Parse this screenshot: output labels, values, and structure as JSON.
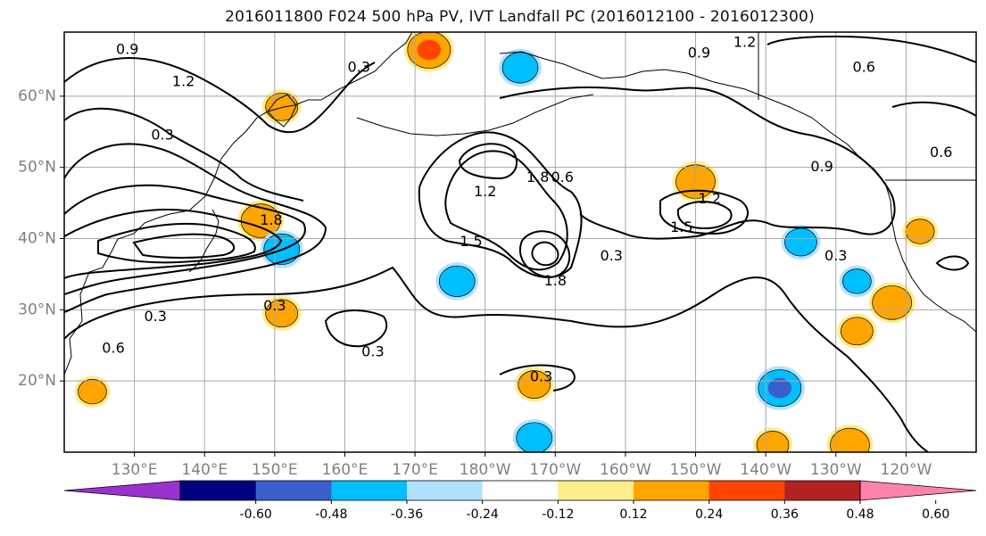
{
  "chart_data": {
    "type": "contour map",
    "title": "2016011800 F024 500 hPa PV, IVT Landfall PC (2016012100 - 2016012300)",
    "x": {
      "tick_labels": [
        "130°E",
        "140°E",
        "150°E",
        "160°E",
        "170°E",
        "180°W",
        "170°W",
        "160°W",
        "150°W",
        "140°W",
        "130°W",
        "120°W"
      ],
      "tick_values_east": [
        130,
        140,
        150,
        160,
        170,
        180,
        190,
        200,
        210,
        220,
        230,
        240
      ],
      "range_east": [
        120,
        250
      ]
    },
    "y": {
      "tick_labels": [
        "20°N",
        "30°N",
        "40°N",
        "50°N",
        "60°N"
      ],
      "tick_values": [
        20,
        30,
        40,
        50,
        60
      ],
      "range": [
        10,
        69
      ]
    },
    "grid": true,
    "colorbar": {
      "orientation": "horizontal",
      "extend": "both",
      "boundaries": [
        -0.6,
        -0.48,
        -0.36,
        -0.24,
        -0.12,
        0.12,
        0.24,
        0.36,
        0.48,
        0.6
      ],
      "tick_labels": [
        "-0.60",
        "-0.48",
        "-0.36",
        "-0.24",
        "-0.12",
        "0.12",
        "0.24",
        "0.36",
        "0.48",
        "0.60"
      ],
      "colors": [
        "#9932CC",
        "#000080",
        "#3A5FCD",
        "#00BFFF",
        "#B0E2FF",
        "#FFFFFF",
        "#FFEC8B",
        "#FFA500",
        "#FF4500",
        "#B22222",
        "#FF82AB"
      ]
    },
    "contour_levels": [
      0.3,
      0.6,
      0.9,
      1.2,
      1.5,
      1.8
    ],
    "contour_labels": [
      {
        "text": "0.9",
        "lon": 129,
        "lat": 66.5
      },
      {
        "text": "0.3",
        "lon": 134,
        "lat": 54.5
      },
      {
        "text": "1.2",
        "lon": 137,
        "lat": 62
      },
      {
        "text": "0.3",
        "lon": 162,
        "lat": 64
      },
      {
        "text": "0.3",
        "lon": 133,
        "lat": 29
      },
      {
        "text": "0.6",
        "lon": 127,
        "lat": 24.5
      },
      {
        "text": "0.3",
        "lon": 150,
        "lat": 30.5
      },
      {
        "text": "1.8",
        "lon": 149.5,
        "lat": 42.5
      },
      {
        "text": "0.3",
        "lon": 164,
        "lat": 24
      },
      {
        "text": "1.2",
        "lon": 180,
        "lat": 46.5
      },
      {
        "text": "1.5",
        "lon": 178,
        "lat": 39.5
      },
      {
        "text": "0.6",
        "lon": 191,
        "lat": 48.5
      },
      {
        "text": "1.8",
        "lon": 187.5,
        "lat": 48.5
      },
      {
        "text": "1.8",
        "lon": 190,
        "lat": 34
      },
      {
        "text": "0.3",
        "lon": 198,
        "lat": 37.5
      },
      {
        "text": "1.2",
        "lon": 212,
        "lat": 45.5
      },
      {
        "text": "1.5",
        "lon": 208,
        "lat": 41.5
      },
      {
        "text": "0.3",
        "lon": 188,
        "lat": 20.5
      },
      {
        "text": "1.2",
        "lon": 217,
        "lat": 67.5
      },
      {
        "text": "0.9",
        "lon": 210.5,
        "lat": 66
      },
      {
        "text": "0.6",
        "lon": 234,
        "lat": 64
      },
      {
        "text": "0.9",
        "lon": 228,
        "lat": 50
      },
      {
        "text": "0.3",
        "lon": 230,
        "lat": 37.5
      },
      {
        "text": "0.6",
        "lon": 245,
        "lat": 52
      }
    ],
    "shaded_anomalies": [
      {
        "lon": 172,
        "lat": 66.5,
        "value": 0.4
      },
      {
        "lon": 185,
        "lat": 64,
        "value": -0.3
      },
      {
        "lon": 151,
        "lat": 58.5,
        "value": 0.25
      },
      {
        "lon": 148,
        "lat": 42.5,
        "value": 0.35
      },
      {
        "lon": 151,
        "lat": 38.5,
        "value": -0.3
      },
      {
        "lon": 151,
        "lat": 29.5,
        "value": 0.25
      },
      {
        "lon": 176,
        "lat": 34,
        "value": -0.3
      },
      {
        "lon": 210,
        "lat": 48,
        "value": 0.35
      },
      {
        "lon": 225,
        "lat": 39.5,
        "value": -0.25
      },
      {
        "lon": 238,
        "lat": 31,
        "value": 0.35
      },
      {
        "lon": 233,
        "lat": 27,
        "value": 0.25
      },
      {
        "lon": 222,
        "lat": 19,
        "value": -0.4
      },
      {
        "lon": 232,
        "lat": 11,
        "value": 0.35
      },
      {
        "lon": 221,
        "lat": 11,
        "value": 0.25
      },
      {
        "lon": 187,
        "lat": 19.5,
        "value": 0.25
      },
      {
        "lon": 187,
        "lat": 12,
        "value": -0.3
      },
      {
        "lon": 124,
        "lat": 18.5,
        "value": 0.2
      },
      {
        "lon": 233,
        "lat": 34,
        "value": -0.2
      },
      {
        "lon": 242,
        "lat": 41,
        "value": 0.2
      }
    ]
  }
}
